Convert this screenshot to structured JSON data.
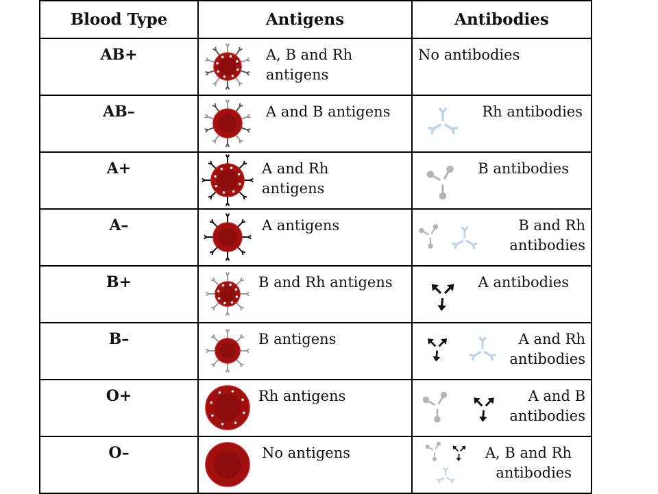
{
  "table": {
    "headers": {
      "blood_type": "Blood Type",
      "antigens": "Antigens",
      "antibodies": "Antibodies"
    },
    "rows": [
      {
        "type": "AB+",
        "antigens": [
          "A, B and Rh",
          "antigens"
        ],
        "antibodies": [
          "No antibodies"
        ],
        "cell_icon": "red-blood-cell-icon",
        "antigen_markers": [
          "A",
          "B",
          "Rh"
        ],
        "antibody_icons": []
      },
      {
        "type": "AB–",
        "antigens": [
          "A and B antigens"
        ],
        "antibodies": [
          "Rh antibodies"
        ],
        "cell_icon": "red-blood-cell-icon",
        "antigen_markers": [
          "A",
          "B"
        ],
        "antibody_icons": [
          "Rh"
        ]
      },
      {
        "type": "A+",
        "antigens": [
          "A and Rh",
          "antigens"
        ],
        "antibodies": [
          "B antibodies"
        ],
        "cell_icon": "red-blood-cell-icon",
        "antigen_markers": [
          "A",
          "Rh"
        ],
        "antibody_icons": [
          "B"
        ]
      },
      {
        "type": "A–",
        "antigens": [
          "A antigens"
        ],
        "antibodies": [
          "B and Rh",
          "antibodies"
        ],
        "cell_icon": "red-blood-cell-icon",
        "antigen_markers": [
          "A"
        ],
        "antibody_icons": [
          "B",
          "Rh"
        ]
      },
      {
        "type": "B+",
        "antigens": [
          "B and Rh antigens"
        ],
        "antibodies": [
          "A antibodies"
        ],
        "cell_icon": "red-blood-cell-icon",
        "antigen_markers": [
          "B",
          "Rh"
        ],
        "antibody_icons": [
          "A"
        ]
      },
      {
        "type": "B–",
        "antigens": [
          "B antigens"
        ],
        "antibodies": [
          "A and Rh",
          "antibodies"
        ],
        "cell_icon": "red-blood-cell-icon",
        "antigen_markers": [
          "B"
        ],
        "antibody_icons": [
          "A",
          "Rh"
        ]
      },
      {
        "type": "O+",
        "antigens": [
          "Rh antigens"
        ],
        "antibodies": [
          "A and B",
          "antibodies"
        ],
        "cell_icon": "red-blood-cell-icon",
        "antigen_markers": [
          "Rh"
        ],
        "antibody_icons": [
          "B",
          "A"
        ]
      },
      {
        "type": "O–",
        "antigens": [
          "No antigens"
        ],
        "antibodies": [
          "A, B and Rh",
          "antibodies"
        ],
        "cell_icon": "red-blood-cell-icon",
        "antigen_markers": [],
        "antibody_icons": [
          "B",
          "A",
          "Rh"
        ]
      }
    ]
  },
  "colors": {
    "cell_fill": "#a0100f",
    "cell_inner": "#8a0c0c",
    "cell_stroke": "#c41a1a",
    "antigen_a": "#111111",
    "antigen_b": "#9a9a9a",
    "antigen_rh": "#ffffff",
    "antibody_a": "#111111",
    "antibody_b": "#b5b5b5",
    "antibody_rh": "#b9d3ea"
  }
}
